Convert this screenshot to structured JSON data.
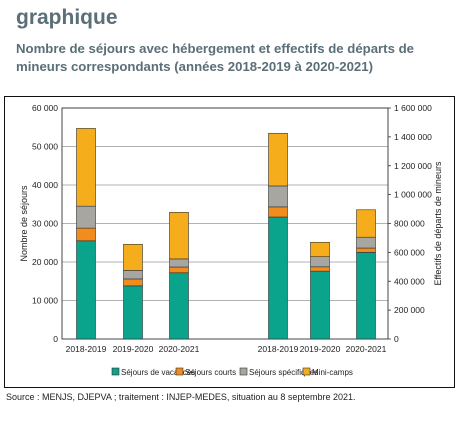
{
  "header": {
    "heading": "graphique",
    "subtitle": "Nombre de séjours avec hébergement et effectifs de départs de mineurs correspondants (années 2018-2019 à 2020-2021)"
  },
  "source": "Source : MENJS, DJEPVA ; traitement : INJEP-MEDES, situation au 8 septembre 2021.",
  "colors": {
    "vacances": "#0aa38c",
    "courts": "#f28c1c",
    "specifiques": "#a8a6a0",
    "minicamps": "#f5ad1b"
  },
  "chart_data": {
    "type": "bar",
    "stacked": true,
    "ylabel": "Nombre de séjours",
    "y2label": "Effectifs de départs de mineurs",
    "ylim": [
      0,
      60000
    ],
    "y2lim": [
      0,
      1600000
    ],
    "yticks": [
      "0",
      "10 000",
      "20 000",
      "30 000",
      "40 000",
      "50 000",
      "60 000"
    ],
    "y2ticks": [
      "0",
      "200 000",
      "400 000",
      "600 000",
      "800 000",
      "1 000 000",
      "1 200 000",
      "1 400 000",
      "1 600 000"
    ],
    "legend_position": "bottom",
    "groups": [
      {
        "axis": "left",
        "categories": [
          "2018-2019",
          "2019-2020",
          "2020-2021"
        ],
        "series": [
          {
            "name": "Séjours de vacances",
            "color_key": "vacances",
            "values": [
              25500,
              13800,
              17200
            ]
          },
          {
            "name": "Séjours courts",
            "color_key": "courts",
            "values": [
              3300,
              1800,
              1500
            ]
          },
          {
            "name": "Séjours spécifiques",
            "color_key": "specifiques",
            "values": [
              5700,
              2200,
              2100
            ]
          },
          {
            "name": "Mini-camps",
            "color_key": "minicamps",
            "values": [
              20200,
              6800,
              12100
            ]
          }
        ]
      },
      {
        "axis": "right",
        "categories": [
          "2018-2019",
          "2019-2020",
          "2020-2021"
        ],
        "series": [
          {
            "name": "Séjours de vacances",
            "color_key": "vacances",
            "values": [
              845000,
              470000,
              600000
            ]
          },
          {
            "name": "Séjours courts",
            "color_key": "courts",
            "values": [
              70000,
              30000,
              30000
            ]
          },
          {
            "name": "Séjours spécifiques",
            "color_key": "specifiques",
            "values": [
              145000,
              70000,
              75000
            ]
          },
          {
            "name": "Mini-camps",
            "color_key": "minicamps",
            "values": [
              365000,
              100000,
              190000
            ]
          }
        ]
      }
    ],
    "legend": [
      "Séjours de vacances",
      "Séjours courts",
      "Séjours spécifiques",
      "Mini-camps"
    ]
  }
}
